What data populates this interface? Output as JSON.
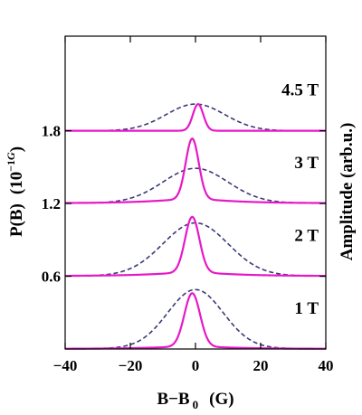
{
  "chart_data": {
    "type": "line",
    "xlabel_main": "B−B",
    "xlabel_sub": "0",
    "xlabel_unit": "(G)",
    "ylabel_left_main": "P(B)",
    "ylabel_left_unit_prefix": "(10",
    "ylabel_left_unit_exp": "−1",
    "ylabel_left_unit_italic": "G",
    "ylabel_left_unit_suffix": ")",
    "ylabel_right": "Amplitude (arb.u.)",
    "xlim": [
      -40,
      40
    ],
    "ylim": [
      0,
      2.58
    ],
    "xticks": [
      {
        "value": -40,
        "label": "−40"
      },
      {
        "value": -20,
        "label": "−20"
      },
      {
        "value": 0,
        "label": "0"
      },
      {
        "value": 20,
        "label": "20"
      },
      {
        "value": 40,
        "label": "40"
      }
    ],
    "yticks": [
      {
        "value": 0.6,
        "label": "0.6"
      },
      {
        "value": 1.2,
        "label": "1.2"
      },
      {
        "value": 1.8,
        "label": "1.8"
      }
    ],
    "colors": {
      "solid": "#e619c8",
      "dashed": "#3a3a78",
      "axis": "#000000"
    },
    "panels": [
      {
        "label": "4.5 T",
        "baseline": 1.8,
        "solid": {
          "center": 0.8,
          "width": 1.6,
          "height": 0.22,
          "xrange": [
            -40,
            40
          ]
        },
        "dashed": {
          "center": 0.0,
          "width": 9.0,
          "height": 0.22,
          "xrange": [
            -40,
            34
          ]
        }
      },
      {
        "label": "3 T",
        "baseline": 1.2,
        "solid": {
          "center": -1.0,
          "width": 2.0,
          "height": 0.5,
          "tail": 0.035,
          "xrange": [
            -40,
            40
          ]
        },
        "dashed": {
          "center": 0.0,
          "width": 10.0,
          "height": 0.27,
          "tail": 0.02,
          "xrange": [
            -40,
            40
          ]
        }
      },
      {
        "label": "2 T",
        "baseline": 0.6,
        "solid": {
          "center": -1.0,
          "width": 2.2,
          "height": 0.46,
          "tail": 0.03,
          "xrange": [
            -40,
            40
          ]
        },
        "dashed": {
          "center": 0.0,
          "width": 10.0,
          "height": 0.42,
          "tail": 0.02,
          "xrange": [
            -34,
            40
          ]
        }
      },
      {
        "label": "1 T",
        "baseline": 0.0,
        "solid": {
          "center": -1.0,
          "width": 2.4,
          "height": 0.44,
          "tail": 0.02,
          "xrange": [
            -40,
            40
          ]
        },
        "dashed": {
          "center": 0.0,
          "width": 8.5,
          "height": 0.47,
          "tail": 0.02,
          "xrange": [
            -31,
            40
          ]
        }
      }
    ]
  }
}
